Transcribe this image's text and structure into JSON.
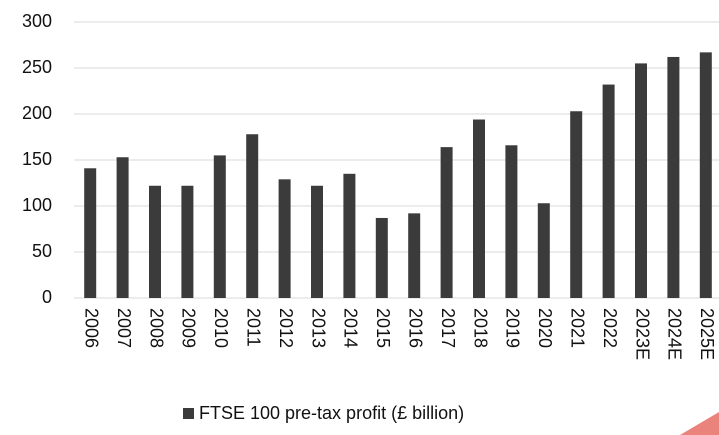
{
  "chart_data": {
    "type": "bar",
    "categories": [
      "2006",
      "2007",
      "2008",
      "2009",
      "2010",
      "2011",
      "2012",
      "2013",
      "2014",
      "2015",
      "2016",
      "2017",
      "2018",
      "2019",
      "2020",
      "2021",
      "2022",
      "2023E",
      "2024E",
      "2025E"
    ],
    "series": [
      {
        "name": "FTSE 100 pre-tax profit (£ billion)",
        "color": "#3b3b3b",
        "values": [
          141,
          153,
          122,
          122,
          155,
          178,
          129,
          122,
          135,
          87,
          92,
          164,
          194,
          166,
          103,
          203,
          232,
          255,
          262,
          267
        ]
      }
    ],
    "ylim": [
      0,
      300
    ],
    "yticks": [
      0,
      50,
      100,
      150,
      200,
      250,
      300
    ],
    "grid": true,
    "legend": "bottom"
  }
}
